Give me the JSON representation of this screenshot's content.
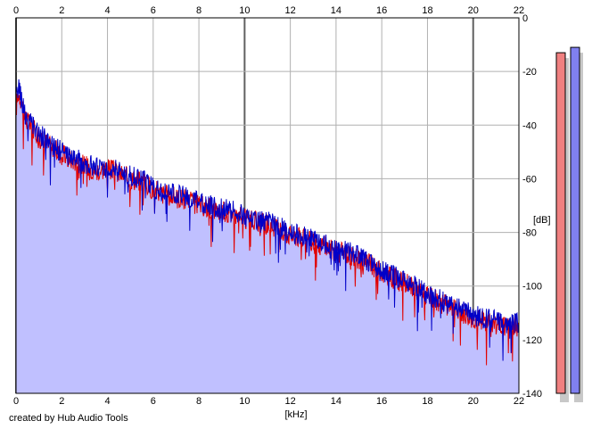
{
  "chart_data": {
    "type": "area",
    "x_unit_label": "[kHz]",
    "y_unit_label": "[dB]",
    "xlim": [
      0,
      22
    ],
    "ylim": [
      -140,
      0
    ],
    "x_ticks": [
      "0",
      "2",
      "4",
      "6",
      "8",
      "10",
      "12",
      "14",
      "16",
      "18",
      "20",
      "22"
    ],
    "y_ticks": [
      "0",
      "-20",
      "-40",
      "-60",
      "-80",
      "-100",
      "-120",
      "-140"
    ],
    "grid": true,
    "series": [
      {
        "color": "#e00000",
        "x": [
          0,
          0.1,
          0.2,
          0.4,
          0.6,
          0.8,
          1,
          1.5,
          2,
          2.5,
          3,
          3.5,
          4,
          4.5,
          5,
          5.5,
          6,
          6.5,
          7,
          7.5,
          8,
          8.5,
          9,
          9.5,
          10,
          10.5,
          11,
          11.5,
          12,
          12.5,
          13,
          13.5,
          14,
          14.5,
          15,
          15.5,
          16,
          16.5,
          17,
          17.5,
          18,
          18.5,
          19,
          19.5,
          20,
          20.5,
          21,
          21.5,
          22
        ],
        "y": [
          -34,
          -28,
          -30,
          -37,
          -40,
          -42,
          -44,
          -48,
          -51,
          -53,
          -55,
          -57,
          -56,
          -58,
          -60,
          -61,
          -64,
          -66,
          -67,
          -68,
          -70,
          -71,
          -72,
          -73,
          -75,
          -76,
          -77,
          -79,
          -81,
          -82,
          -84,
          -85,
          -87,
          -88,
          -90,
          -92,
          -95,
          -97,
          -99,
          -101,
          -104,
          -106,
          -108,
          -110,
          -112,
          -113,
          -114,
          -115,
          -115
        ]
      },
      {
        "color": "#0000c8",
        "x": [
          0,
          0.1,
          0.2,
          0.4,
          0.6,
          0.8,
          1,
          1.5,
          2,
          2.5,
          3,
          3.5,
          4,
          4.5,
          5,
          5.5,
          6,
          6.5,
          7,
          7.5,
          8,
          8.5,
          9,
          9.5,
          10,
          10.5,
          11,
          11.5,
          12,
          12.5,
          13,
          13.5,
          14,
          14.5,
          15,
          15.5,
          16,
          16.5,
          17,
          17.5,
          18,
          18.5,
          19,
          19.5,
          20,
          20.5,
          21,
          21.5,
          22
        ],
        "y": [
          -32,
          -25,
          -29,
          -36,
          -39,
          -41,
          -43,
          -47,
          -50,
          -52,
          -54,
          -56,
          -55,
          -57,
          -59,
          -60,
          -63,
          -65,
          -66,
          -67,
          -69,
          -70,
          -71,
          -72,
          -74,
          -75,
          -76,
          -78,
          -80,
          -81,
          -83,
          -84,
          -86,
          -87,
          -89,
          -91,
          -94,
          -96,
          -98,
          -100,
          -103,
          -105,
          -107,
          -109,
          -111,
          -112,
          -113,
          -114,
          -114
        ]
      }
    ],
    "level_meters": [
      {
        "color": "#f08080",
        "level_db": -13
      },
      {
        "color": "#8080f0",
        "level_db": -11
      }
    ]
  },
  "credit": "created by Hub Audio Tools"
}
